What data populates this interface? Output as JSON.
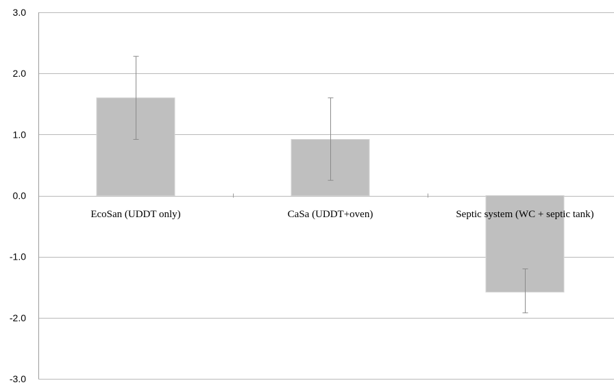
{
  "chart_data": {
    "type": "bar",
    "categories": [
      "EcoSan (UDDT only)",
      "CaSa (UDDT+oven)",
      "Septic system (WC + septic tank)"
    ],
    "values": [
      1.6,
      0.92,
      -1.58
    ],
    "error_low": [
      0.92,
      0.25,
      -1.92
    ],
    "error_high": [
      2.28,
      1.6,
      -1.2
    ],
    "ylim": [
      -3.0,
      3.0
    ],
    "yticks": [
      "3.0",
      "2.0",
      "1.0",
      "0.0",
      "-1.0",
      "-2.0",
      "-3.0"
    ],
    "title": "",
    "xlabel": "",
    "ylabel": "",
    "grid": true,
    "colors": {
      "bar": "#bfbfbf",
      "grid": "#b8b8b8",
      "error_bar": "#8a8a8a"
    }
  }
}
